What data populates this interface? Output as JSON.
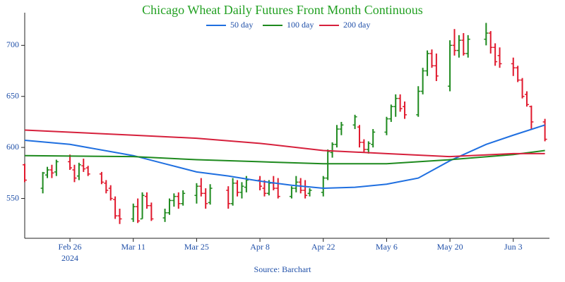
{
  "chart_data": {
    "type": "ohlc",
    "title": "Chicago Wheat Daily Futures Front Month Continuous",
    "source": "Source: Barchart",
    "year_label": "2024",
    "up_color": "#1e8a1e",
    "down_color": "#e0192d",
    "x": [
      "2024-02-16",
      "2024-02-20",
      "2024-02-21",
      "2024-02-22",
      "2024-02-23",
      "2024-02-26",
      "2024-02-27",
      "2024-02-28",
      "2024-02-29",
      "2024-03-01",
      "2024-03-04",
      "2024-03-05",
      "2024-03-06",
      "2024-03-07",
      "2024-03-08",
      "2024-03-11",
      "2024-03-12",
      "2024-03-13",
      "2024-03-14",
      "2024-03-15",
      "2024-03-18",
      "2024-03-19",
      "2024-03-20",
      "2024-03-21",
      "2024-03-22",
      "2024-03-25",
      "2024-03-26",
      "2024-03-27",
      "2024-03-28",
      "2024-04-01",
      "2024-04-02",
      "2024-04-03",
      "2024-04-04",
      "2024-04-05",
      "2024-04-08",
      "2024-04-09",
      "2024-04-10",
      "2024-04-11",
      "2024-04-12",
      "2024-04-15",
      "2024-04-16",
      "2024-04-17",
      "2024-04-18",
      "2024-04-19",
      "2024-04-22",
      "2024-04-23",
      "2024-04-24",
      "2024-04-25",
      "2024-04-26",
      "2024-04-29",
      "2024-04-30",
      "2024-05-01",
      "2024-05-02",
      "2024-05-03",
      "2024-05-06",
      "2024-05-07",
      "2024-05-08",
      "2024-05-09",
      "2024-05-10",
      "2024-05-13",
      "2024-05-14",
      "2024-05-15",
      "2024-05-16",
      "2024-05-17",
      "2024-05-20",
      "2024-05-21",
      "2024-05-22",
      "2024-05-23",
      "2024-05-24",
      "2024-05-28",
      "2024-05-29",
      "2024-05-30",
      "2024-05-31",
      "2024-06-03",
      "2024-06-04",
      "2024-06-05",
      "2024-06-06",
      "2024-06-07",
      "2024-06-10"
    ],
    "open": [
      583,
      560,
      573,
      578,
      576,
      586,
      578,
      572,
      582,
      580,
      574,
      565,
      560,
      549,
      533,
      530,
      542,
      530,
      552,
      543,
      531,
      536,
      548,
      552,
      545,
      553,
      562,
      555,
      546,
      558,
      545,
      565,
      556,
      561,
      568,
      560,
      555,
      565,
      560,
      552,
      560,
      566,
      558,
      555,
      556,
      570,
      595,
      603,
      618,
      622,
      620,
      605,
      598,
      603,
      615,
      628,
      640,
      648,
      640,
      632,
      655,
      675,
      692,
      680,
      660,
      700,
      695,
      705,
      692,
      706,
      712,
      698,
      690,
      682,
      678,
      666,
      652,
      640,
      625
    ],
    "high": [
      584,
      576,
      581,
      583,
      588,
      593,
      583,
      585,
      589,
      582,
      576,
      568,
      563,
      552,
      540,
      545,
      550,
      556,
      556,
      546,
      540,
      550,
      555,
      556,
      558,
      565,
      570,
      560,
      564,
      562,
      570,
      568,
      566,
      572,
      572,
      568,
      568,
      572,
      570,
      562,
      572,
      570,
      568,
      560,
      572,
      598,
      605,
      622,
      625,
      632,
      622,
      608,
      606,
      618,
      630,
      642,
      652,
      652,
      645,
      660,
      678,
      695,
      696,
      692,
      705,
      716,
      710,
      712,
      710,
      722,
      714,
      702,
      698,
      688,
      680,
      668,
      655,
      641,
      628
    ],
    "low": [
      566,
      555,
      570,
      570,
      572,
      578,
      566,
      568,
      576,
      572,
      564,
      555,
      548,
      530,
      525,
      527,
      526,
      530,
      540,
      528,
      527,
      534,
      542,
      540,
      543,
      545,
      552,
      540,
      544,
      540,
      543,
      552,
      550,
      556,
      558,
      552,
      553,
      558,
      550,
      550,
      556,
      555,
      550,
      552,
      552,
      568,
      590,
      600,
      612,
      618,
      600,
      595,
      594,
      600,
      612,
      625,
      630,
      635,
      628,
      630,
      652,
      670,
      678,
      665,
      655,
      690,
      688,
      690,
      688,
      700,
      692,
      680,
      678,
      670,
      664,
      648,
      640,
      618,
      606
    ],
    "close": [
      568,
      575,
      578,
      575,
      586,
      580,
      570,
      583,
      579,
      574,
      566,
      558,
      550,
      533,
      530,
      542,
      528,
      553,
      543,
      530,
      536,
      548,
      552,
      545,
      555,
      562,
      555,
      545,
      560,
      545,
      565,
      556,
      562,
      568,
      562,
      555,
      565,
      560,
      552,
      560,
      566,
      558,
      553,
      558,
      570,
      596,
      603,
      618,
      622,
      630,
      605,
      598,
      604,
      615,
      628,
      640,
      648,
      638,
      632,
      655,
      675,
      692,
      680,
      670,
      700,
      695,
      705,
      692,
      706,
      712,
      698,
      684,
      682,
      678,
      666,
      650,
      642,
      625,
      608
    ],
    "series": [
      {
        "name": "50 day",
        "color": "#1f6fe0",
        "x": [
          "2024-02-16",
          "2024-02-26",
          "2024-03-11",
          "2024-03-18",
          "2024-03-25",
          "2024-04-01",
          "2024-04-08",
          "2024-04-15",
          "2024-04-22",
          "2024-04-29",
          "2024-05-06",
          "2024-05-13",
          "2024-05-20",
          "2024-05-28",
          "2024-06-03",
          "2024-06-10"
        ],
        "values": [
          607,
          603,
          592,
          584,
          576,
          572,
          567,
          563,
          560,
          561,
          564,
          570,
          587,
          603,
          612,
          622
        ]
      },
      {
        "name": "100 day",
        "color": "#1e8a1e",
        "x": [
          "2024-02-16",
          "2024-03-11",
          "2024-03-25",
          "2024-04-08",
          "2024-04-22",
          "2024-05-06",
          "2024-05-20",
          "2024-06-03",
          "2024-06-10"
        ],
        "values": [
          592,
          591,
          588,
          586,
          584,
          584,
          588,
          593,
          597
        ]
      },
      {
        "name": "200 day",
        "color": "#d6203c",
        "x": [
          "2024-02-16",
          "2024-03-11",
          "2024-03-25",
          "2024-04-08",
          "2024-04-22",
          "2024-05-06",
          "2024-05-20",
          "2024-06-03",
          "2024-06-10"
        ],
        "values": [
          617,
          612,
          609,
          604,
          597,
          594,
          591,
          594,
          594
        ]
      }
    ],
    "xlim": [
      "2024-02-16",
      "2024-06-11"
    ],
    "xticks": [
      {
        "value": "2024-02-26",
        "label": "Feb 26"
      },
      {
        "value": "2024-03-11",
        "label": "Mar 11"
      },
      {
        "value": "2024-03-25",
        "label": "Mar 25"
      },
      {
        "value": "2024-04-08",
        "label": "Apr 8"
      },
      {
        "value": "2024-04-22",
        "label": "Apr 22"
      },
      {
        "value": "2024-05-06",
        "label": "May 6"
      },
      {
        "value": "2024-05-20",
        "label": "May 20"
      },
      {
        "value": "2024-06-03",
        "label": "Jun 3"
      }
    ],
    "ylim": [
      511,
      732
    ],
    "yticks": [
      550,
      600,
      650,
      700
    ]
  }
}
